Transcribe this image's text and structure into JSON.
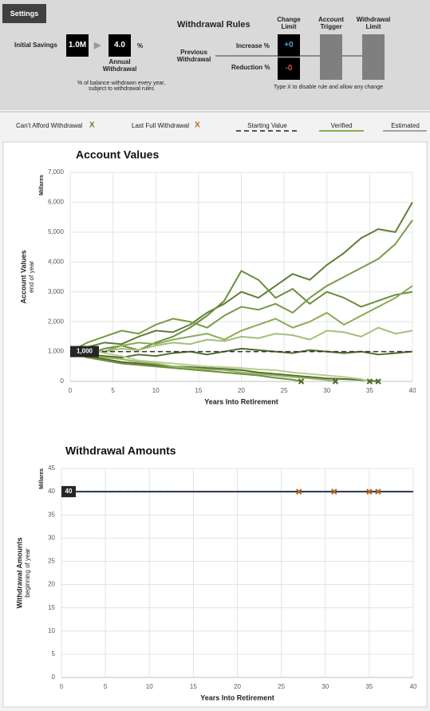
{
  "settings": {
    "button": "Settings",
    "initial_savings_label": "Initial Savings",
    "initial_savings": "1.0M",
    "withdrawal_rate": "4.0",
    "percent_sign": "%",
    "annual_withdrawal_label": "Annual Withdrawal",
    "withdrawal_note": "% of balance withdrawn every year, subject to withdrawal rules",
    "rules_title": "Withdrawal Rules",
    "col_change_limit": "Change Limit",
    "col_account_trigger": "Account Trigger",
    "col_withdrawal_limit": "Withdrawal Limit",
    "previous_withdrawal": "Previous Withdrawal",
    "increase_label": "Increase %",
    "increase_value": "+0",
    "reduction_label": "Reduction %",
    "reduction_value": "-0",
    "rules_note": "Type X to disable rule and allow any change"
  },
  "legend": {
    "cant_afford": "Can't Afford Withdrawal",
    "cant_afford_marker": "X",
    "last_full": "Last Full Withdrawal",
    "last_full_marker": "X",
    "starting_value": "Starting Value",
    "verified": "Verified",
    "estimated": "Estimated"
  },
  "chart_data": [
    {
      "type": "line",
      "title": "Account Values",
      "y_unit": "Millares",
      "ylabel": "Account Values",
      "ylabel_sub": "end of year",
      "xlabel": "Years Into Retirement",
      "xlim": [
        0,
        40
      ],
      "xticks": [
        0,
        5,
        10,
        15,
        20,
        25,
        30,
        35,
        40
      ],
      "ylim": [
        0,
        7000
      ],
      "yticks": [
        0,
        {
          "value": 1000,
          "label": "1,000"
        },
        {
          "value": 2000,
          "label": "2,000"
        },
        {
          "value": 3000,
          "label": "3,000"
        },
        {
          "value": 4000,
          "label": "4,000"
        },
        {
          "value": 5000,
          "label": "5,000"
        },
        {
          "value": 6000,
          "label": "6,000"
        },
        {
          "value": 7000,
          "label": "7,000"
        }
      ],
      "grid": true,
      "reference": {
        "value": 1000,
        "label": "1,000"
      },
      "x": [
        0,
        2,
        4,
        6,
        8,
        10,
        12,
        14,
        16,
        18,
        20,
        22,
        24,
        26,
        28,
        30,
        32,
        34,
        36,
        38,
        40
      ],
      "series": [
        {
          "color": "#5f7f35",
          "values": [
            1000,
            1150,
            1300,
            1250,
            1500,
            1700,
            1650,
            1900,
            2300,
            2600,
            3000,
            2800,
            3200,
            3600,
            3400,
            3900,
            4300,
            4800,
            5100,
            5000,
            6000
          ]
        },
        {
          "color": "#6b8e3d",
          "values": [
            1000,
            900,
            1100,
            1200,
            1050,
            1300,
            1500,
            1800,
            2200,
            2700,
            3700,
            3400,
            2800,
            3100,
            2600,
            3000,
            2800,
            2500,
            2700,
            2900,
            3000
          ]
        },
        {
          "color": "#7a9a48",
          "values": [
            1000,
            1300,
            1500,
            1700,
            1600,
            1900,
            2100,
            2000,
            1800,
            2200,
            2500,
            2400,
            2600,
            2300,
            2800,
            3200,
            3500,
            3800,
            4100,
            4600,
            5400
          ]
        },
        {
          "color": "#8bab55",
          "values": [
            1000,
            1100,
            1000,
            1200,
            1300,
            1250,
            1400,
            1500,
            1600,
            1400,
            1700,
            1900,
            2100,
            1800,
            2000,
            2300,
            1900,
            2200,
            2500,
            2800,
            3200
          ]
        },
        {
          "color": "#a3c07a",
          "values": [
            1000,
            950,
            1000,
            1100,
            1050,
            1200,
            1300,
            1250,
            1400,
            1350,
            1500,
            1450,
            1600,
            1550,
            1400,
            1700,
            1650,
            1500,
            1800,
            1600,
            1700
          ]
        },
        {
          "color": "#4f6b2a",
          "values": [
            1000,
            900,
            850,
            800,
            900,
            850,
            950,
            1000,
            900,
            1000,
            1100,
            1050,
            1000,
            950,
            1050,
            1000,
            950,
            1000,
            900,
            950,
            1000
          ]
        },
        {
          "color": "#556b2f",
          "x": [
            0,
            2,
            4,
            6,
            8,
            10,
            12,
            14,
            16,
            18,
            20,
            22,
            24,
            26,
            28,
            30,
            32,
            34,
            36
          ],
          "values": [
            1000,
            850,
            750,
            650,
            600,
            550,
            500,
            480,
            450,
            420,
            380,
            300,
            250,
            200,
            150,
            100,
            80,
            50,
            0
          ]
        },
        {
          "color": "#6f8f40",
          "x": [
            0,
            2,
            4,
            6,
            8,
            10,
            12,
            14,
            16,
            18,
            20,
            22,
            24,
            26,
            27
          ],
          "values": [
            1000,
            800,
            700,
            600,
            550,
            500,
            450,
            400,
            350,
            300,
            250,
            200,
            120,
            60,
            0
          ]
        },
        {
          "color": "#94b465",
          "x": [
            0,
            2,
            4,
            6,
            8,
            10,
            12,
            14,
            16,
            18,
            20,
            22,
            24,
            26,
            28,
            30,
            31
          ],
          "values": [
            1000,
            900,
            800,
            750,
            650,
            600,
            500,
            450,
            400,
            380,
            300,
            250,
            200,
            150,
            100,
            50,
            0
          ]
        },
        {
          "color": "#b5cf8c",
          "x": [
            0,
            2,
            4,
            6,
            8,
            10,
            12,
            14,
            16,
            18,
            20,
            22,
            24,
            26,
            28,
            30,
            32,
            34,
            35
          ],
          "values": [
            1000,
            1100,
            950,
            850,
            700,
            650,
            600,
            550,
            500,
            480,
            450,
            400,
            380,
            300,
            250,
            200,
            150,
            80,
            0
          ]
        }
      ],
      "markers": {
        "color": "#4f6b2a",
        "x": [
          27,
          31,
          35,
          36
        ],
        "values": [
          0,
          0,
          0,
          0
        ]
      }
    },
    {
      "type": "line",
      "title": "Withdrawal Amounts",
      "y_unit": "Millares",
      "ylabel": "Withdrawal Amounts",
      "ylabel_sub": "beginning of year",
      "xlabel": "Years Into Retirement",
      "xlim": [
        0,
        40
      ],
      "xticks": [
        0,
        5,
        10,
        15,
        20,
        25,
        30,
        35,
        40
      ],
      "ylim": [
        0,
        45
      ],
      "yticks": [
        0,
        5,
        10,
        15,
        20,
        25,
        30,
        35,
        40,
        45
      ],
      "grid": true,
      "reference": {
        "value": 40,
        "label": "40"
      },
      "x": [
        0,
        40
      ],
      "series": [
        {
          "color": "#1f3864",
          "values": [
            40,
            40
          ]
        }
      ],
      "markers": {
        "color": "#b5651d",
        "x": [
          27,
          31,
          35,
          36
        ],
        "values": [
          40,
          40,
          40,
          40
        ]
      }
    }
  ]
}
